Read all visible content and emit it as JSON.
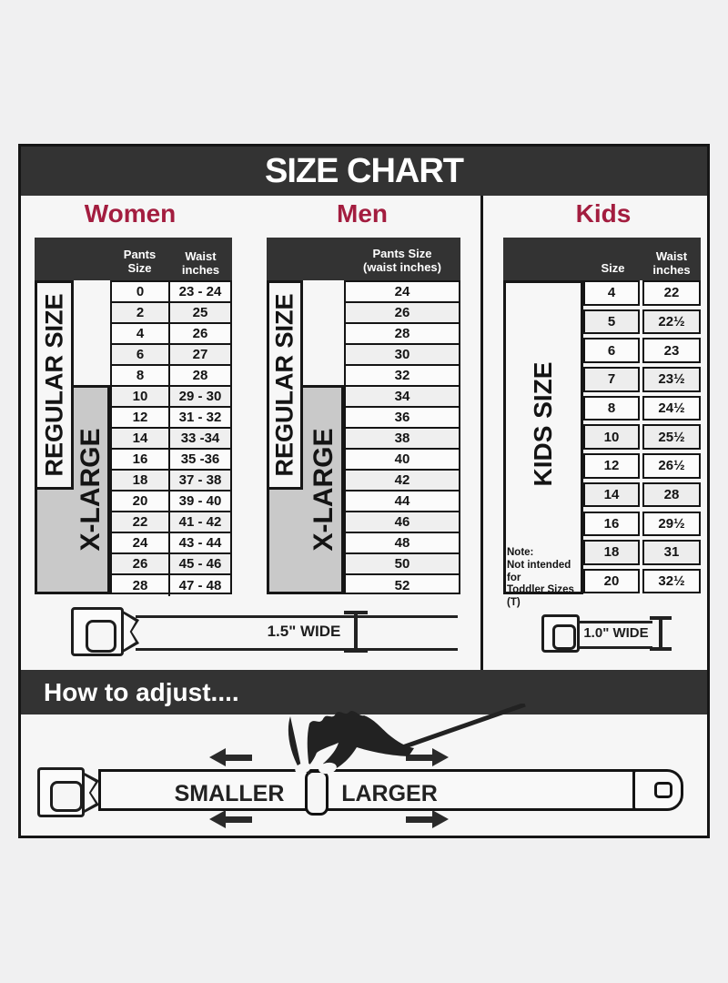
{
  "title": "SIZE CHART",
  "colors": {
    "accent": "#a31d3f",
    "header_bar": "#333333",
    "xlarge_bg": "#c9c9c9",
    "card_bg": "#f6f6f6",
    "ink": "#141414"
  },
  "chart_data": [
    {
      "type": "table",
      "title": "Women",
      "columns": [
        "Pants Size",
        "Waist inches"
      ],
      "rows": [
        [
          "0",
          "23 - 24"
        ],
        [
          "2",
          "25"
        ],
        [
          "4",
          "26"
        ],
        [
          "6",
          "27"
        ],
        [
          "8",
          "28"
        ],
        [
          "10",
          "29 - 30"
        ],
        [
          "12",
          "31 - 32"
        ],
        [
          "14",
          "33 -34"
        ],
        [
          "16",
          "35 -36"
        ],
        [
          "18",
          "37 - 38"
        ],
        [
          "20",
          "39 - 40"
        ],
        [
          "22",
          "41 - 42"
        ],
        [
          "24",
          "43 - 44"
        ],
        [
          "26",
          "45 - 46"
        ],
        [
          "28",
          "47 - 48"
        ]
      ],
      "size_groups": [
        {
          "label": "REGULAR SIZE",
          "applies_to": "pants sizes 0-18"
        },
        {
          "label": "X-LARGE",
          "applies_to": "pants sizes 10-28"
        }
      ],
      "belt_width": "1.5\" WIDE"
    },
    {
      "type": "table",
      "title": "Men",
      "columns": [
        "Pants Size (waist inches)"
      ],
      "header_lines": [
        "Pants Size",
        "(waist inches)"
      ],
      "rows": [
        [
          "24"
        ],
        [
          "26"
        ],
        [
          "28"
        ],
        [
          "30"
        ],
        [
          "32"
        ],
        [
          "34"
        ],
        [
          "36"
        ],
        [
          "38"
        ],
        [
          "40"
        ],
        [
          "42"
        ],
        [
          "44"
        ],
        [
          "46"
        ],
        [
          "48"
        ],
        [
          "50"
        ],
        [
          "52"
        ]
      ],
      "size_groups": [
        {
          "label": "REGULAR SIZE",
          "applies_to": "sizes 24-42"
        },
        {
          "label": "X-LARGE",
          "applies_to": "sizes 34-52"
        }
      ],
      "belt_width": "1.5\" WIDE"
    },
    {
      "type": "table",
      "title": "Kids",
      "columns": [
        "Size",
        "Waist inches"
      ],
      "rows": [
        [
          "4",
          "22"
        ],
        [
          "5",
          "22½"
        ],
        [
          "6",
          "23"
        ],
        [
          "7",
          "23½"
        ],
        [
          "8",
          "24½"
        ],
        [
          "10",
          "25½"
        ],
        [
          "12",
          "26½"
        ],
        [
          "14",
          "28"
        ],
        [
          "16",
          "29½"
        ],
        [
          "18",
          "31"
        ],
        [
          "20",
          "32½"
        ]
      ],
      "size_groups": [
        {
          "label": "KIDS SIZE",
          "applies_to": "sizes 4-20"
        }
      ],
      "note_lines": [
        "Note:",
        "Not intended for",
        "Toddler Sizes (T)"
      ],
      "belt_width": "1.0\" WIDE"
    }
  ],
  "adjust": {
    "title": "How to adjust....",
    "smaller_label": "SMALLER",
    "larger_label": "LARGER"
  }
}
